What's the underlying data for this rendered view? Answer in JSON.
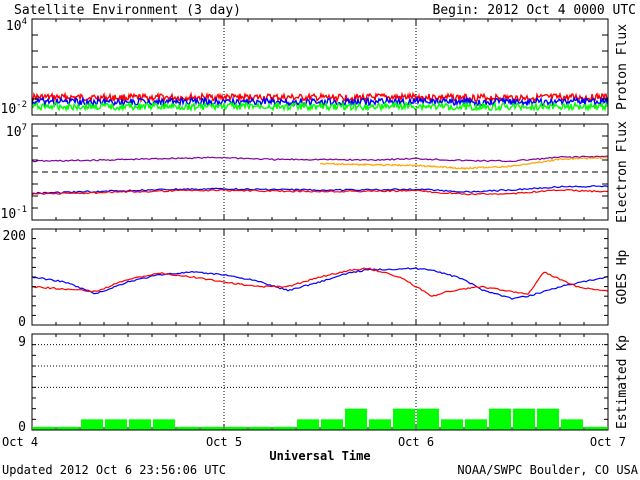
{
  "header": {
    "title": "Satellite Environment (3 day)",
    "begin": "Begin:  2012 Oct 4 0000 UTC"
  },
  "footer": {
    "updated": "Updated 2012 Oct  6 23:56:06 UTC",
    "source": "NOAA/SWPC Boulder, CO USA"
  },
  "colors": {
    "red": "#ff0000",
    "blue": "#0000ff",
    "green": "#00ff00",
    "purple": "#8000a0",
    "orange": "#ffa500",
    "kp_bar": "#00ff00"
  },
  "chart_data": [
    {
      "type": "line",
      "panel": "proton",
      "ylabel": "Proton Flux",
      "yscale": "log",
      "ylim": [
        0.01,
        10000
      ],
      "ytick_labels": [
        {
          "base": "10",
          "exp": "4"
        },
        {
          "base": "10",
          "exp": "-2"
        }
      ],
      "threshold": 10,
      "series": [
        {
          "color": "#ff0000",
          "x": [
            0,
            12,
            24,
            36,
            48,
            60,
            72
          ],
          "y": [
            0.13,
            0.12,
            0.13,
            0.12,
            0.13,
            0.12,
            0.13
          ]
        },
        {
          "color": "#0000ff",
          "x": [
            0,
            12,
            24,
            36,
            48,
            60,
            72
          ],
          "y": [
            0.07,
            0.065,
            0.07,
            0.065,
            0.07,
            0.065,
            0.07
          ]
        },
        {
          "color": "#00ff00",
          "x": [
            0,
            12,
            24,
            36,
            48,
            60,
            72
          ],
          "y": [
            0.035,
            0.033,
            0.035,
            0.034,
            0.035,
            0.033,
            0.035
          ]
        }
      ]
    },
    {
      "type": "line",
      "panel": "electron",
      "ylabel": "Electron Flux",
      "yscale": "log",
      "ylim": [
        0.1,
        10000000
      ],
      "ytick_labels": [
        {
          "base": "10",
          "exp": "7"
        },
        {
          "base": "10",
          "exp": "-1"
        }
      ],
      "threshold": 1000,
      "series": [
        {
          "color": "#8000a0",
          "x": [
            0,
            6,
            12,
            18,
            24,
            30,
            36,
            42,
            48,
            54,
            60,
            66,
            72
          ],
          "y": [
            8000,
            9000,
            11000,
            14000,
            16000,
            11000,
            11000,
            10000,
            13000,
            9000,
            8000,
            17000,
            20000
          ]
        },
        {
          "color": "#ffa500",
          "x": [
            36,
            42,
            48,
            54,
            60,
            66,
            72
          ],
          "y": [
            5000,
            4000,
            3500,
            2000,
            3000,
            12000,
            15000
          ]
        },
        {
          "color": "#0000ff",
          "x": [
            0,
            6,
            12,
            18,
            24,
            30,
            36,
            42,
            48,
            54,
            60,
            66,
            72
          ],
          "y": [
            17,
            22,
            28,
            35,
            40,
            34,
            32,
            32,
            38,
            22,
            32,
            60,
            65
          ]
        },
        {
          "color": "#ff0000",
          "x": [
            0,
            6,
            12,
            18,
            24,
            30,
            36,
            42,
            48,
            54,
            60,
            66,
            72
          ],
          "y": [
            15,
            17,
            22,
            28,
            30,
            26,
            24,
            25,
            28,
            14,
            16,
            32,
            22
          ]
        }
      ]
    },
    {
      "type": "line",
      "panel": "hp",
      "ylabel": "GOES Hp",
      "ylim": [
        0,
        200
      ],
      "yticks": [
        0,
        200
      ],
      "series": [
        {
          "color": "#0000ff",
          "x": [
            0,
            4,
            8,
            12,
            16,
            20,
            24,
            28,
            32,
            36,
            40,
            42,
            48,
            50,
            54,
            56,
            60,
            62,
            66,
            72
          ],
          "y": [
            100,
            90,
            65,
            90,
            105,
            110,
            105,
            92,
            72,
            90,
            110,
            115,
            118,
            115,
            95,
            75,
            55,
            60,
            80,
            100
          ]
        },
        {
          "color": "#ff0000",
          "x": [
            0,
            4,
            8,
            12,
            16,
            20,
            24,
            28,
            32,
            36,
            40,
            42,
            46,
            48,
            50,
            52,
            56,
            60,
            62,
            64,
            68,
            72
          ],
          "y": [
            80,
            75,
            70,
            95,
            108,
            100,
            90,
            80,
            80,
            100,
            115,
            118,
            100,
            80,
            60,
            70,
            80,
            70,
            65,
            110,
            80,
            70
          ]
        }
      ]
    },
    {
      "type": "bar",
      "panel": "kp",
      "ylabel": "Estimated Kp",
      "ylim": [
        0,
        9
      ],
      "yticks": [
        0,
        9
      ],
      "grid_levels": [
        4,
        6,
        8
      ],
      "interval_hours": 3,
      "values": [
        0.3,
        0.3,
        1,
        1,
        1,
        1,
        0.3,
        0.3,
        0.3,
        0.3,
        0.3,
        1,
        1,
        2,
        1,
        2,
        2,
        1,
        1,
        2,
        2,
        2,
        1,
        0.3
      ]
    }
  ],
  "xaxis": {
    "xlabel": "Universal Time",
    "range": [
      0,
      72
    ],
    "tick_labels": [
      "Oct 4",
      "Oct 5",
      "Oct 6",
      "Oct 7"
    ]
  }
}
